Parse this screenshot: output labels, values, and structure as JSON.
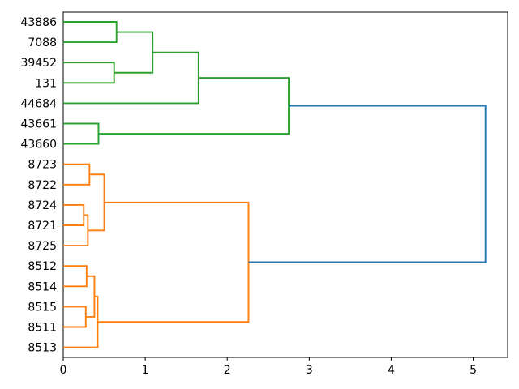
{
  "chart_data": {
    "type": "dendrogram",
    "orientation": "leaves-left-root-right",
    "title": "",
    "xlabel": "",
    "ylabel": "",
    "x_ticks": [
      "0",
      "1",
      "2",
      "3",
      "4",
      "5"
    ],
    "x_tick_values": [
      0,
      1,
      2,
      3,
      4,
      5
    ],
    "xlim": [
      0,
      5.42
    ],
    "grid": false,
    "colors": {
      "green": "#2ca02c",
      "orange": "#ff7f0e",
      "blue": "#1f77b4",
      "axis": "#000000"
    },
    "leaves": [
      "43886",
      "7088",
      "39452",
      "131",
      "44684",
      "43661",
      "43660",
      "8723",
      "8722",
      "8724",
      "8721",
      "8725",
      "8512",
      "8514",
      "8515",
      "8511",
      "8513"
    ],
    "merges": [
      {
        "name": "m0",
        "children": [
          "43886",
          "7088"
        ],
        "height": 0.65,
        "color_key": "green"
      },
      {
        "name": "m1",
        "children": [
          "39452",
          "131"
        ],
        "height": 0.62,
        "color_key": "green"
      },
      {
        "name": "m2",
        "children": [
          "m0",
          "m1"
        ],
        "height": 1.09,
        "color_key": "green"
      },
      {
        "name": "m3",
        "children": [
          "m2",
          "44684"
        ],
        "height": 1.65,
        "color_key": "green"
      },
      {
        "name": "m4",
        "children": [
          "43661",
          "43660"
        ],
        "height": 0.43,
        "color_key": "green"
      },
      {
        "name": "m5",
        "children": [
          "m3",
          "m4"
        ],
        "height": 2.75,
        "color_key": "green"
      },
      {
        "name": "m6",
        "children": [
          "8723",
          "8722"
        ],
        "height": 0.32,
        "color_key": "orange"
      },
      {
        "name": "m7",
        "children": [
          "8724",
          "8721"
        ],
        "height": 0.25,
        "color_key": "orange"
      },
      {
        "name": "m8",
        "children": [
          "m7",
          "8725"
        ],
        "height": 0.3,
        "color_key": "orange"
      },
      {
        "name": "m9",
        "children": [
          "m6",
          "m8"
        ],
        "height": 0.5,
        "color_key": "orange"
      },
      {
        "name": "m10",
        "children": [
          "8512",
          "8514"
        ],
        "height": 0.285,
        "color_key": "orange"
      },
      {
        "name": "m11",
        "children": [
          "8515",
          "8511"
        ],
        "height": 0.275,
        "color_key": "orange"
      },
      {
        "name": "m12",
        "children": [
          "m10",
          "m11"
        ],
        "height": 0.38,
        "color_key": "orange"
      },
      {
        "name": "m13",
        "children": [
          "m12",
          "8513"
        ],
        "height": 0.42,
        "color_key": "orange"
      },
      {
        "name": "m14",
        "children": [
          "m9",
          "m13"
        ],
        "height": 2.26,
        "color_key": "orange"
      },
      {
        "name": "m15",
        "children": [
          "m5",
          "m14"
        ],
        "height": 5.15,
        "color_key": "blue"
      }
    ]
  }
}
